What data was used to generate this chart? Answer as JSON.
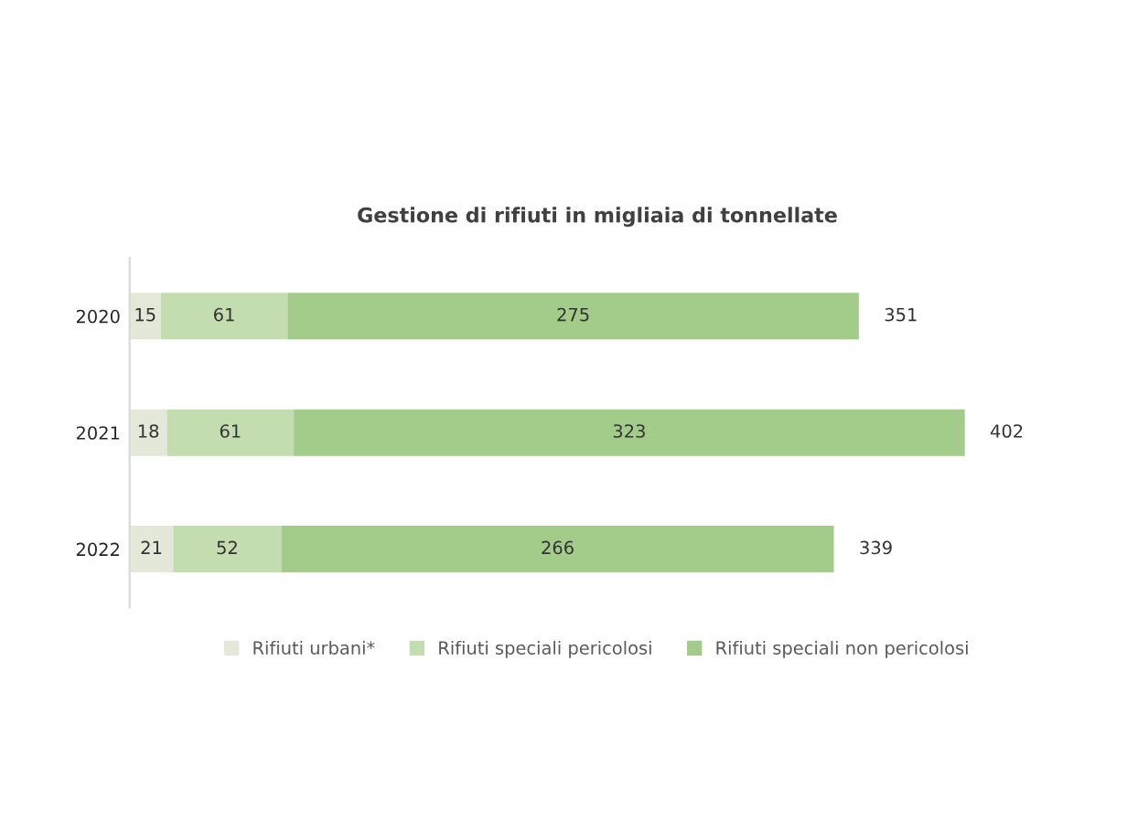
{
  "chart_data": {
    "type": "bar",
    "orientation": "horizontal",
    "stacked": true,
    "title": "Gestione di rifiuti in migliaia di tonnellate",
    "categories": [
      "2020",
      "2021",
      "2022"
    ],
    "series": [
      {
        "name": "Rifiuti urbani*",
        "color": "#e4e8d8",
        "values": [
          15,
          18,
          21
        ]
      },
      {
        "name": "Rifiuti speciali pericolosi",
        "color": "#c4ddb0",
        "values": [
          61,
          61,
          52
        ]
      },
      {
        "name": "Rifiuti speciali non pericolosi",
        "color": "#a3cc8a",
        "values": [
          275,
          323,
          266
        ]
      }
    ],
    "data_labels": true,
    "totals": [
      "351",
      "402",
      "339"
    ],
    "legend": "bottom",
    "grid": false,
    "tick_labels": "y"
  }
}
